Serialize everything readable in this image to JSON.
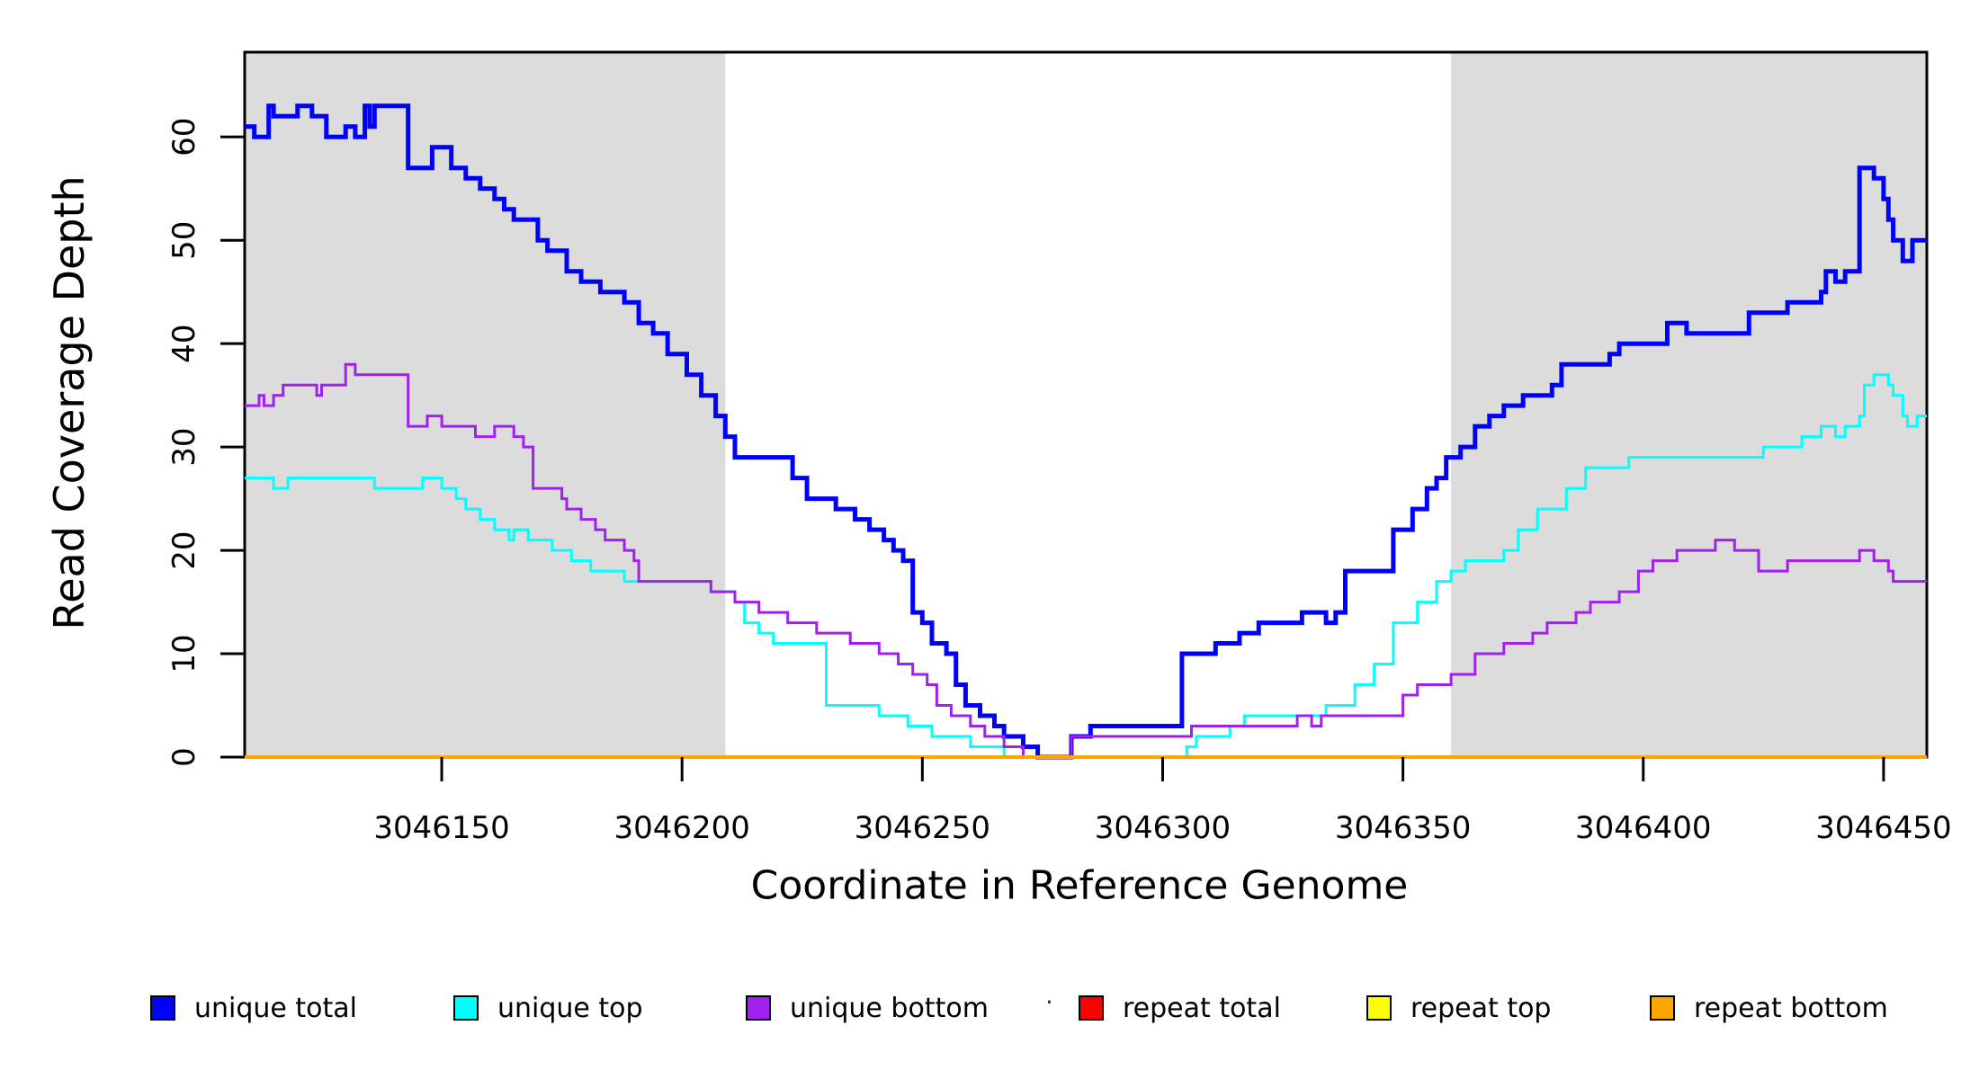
{
  "figure": {
    "xlabel": "Coordinate in Reference Genome",
    "ylabel": "Read Coverage Depth"
  },
  "chart_data": {
    "type": "line",
    "subtype": "step-post",
    "title": "",
    "xlabel": "Coordinate in Reference Genome",
    "ylabel": "Read Coverage Depth",
    "xlim": [
      3046109,
      3046459
    ],
    "ylim": [
      0,
      68.2
    ],
    "x_ticks": [
      3046150,
      3046200,
      3046250,
      3046300,
      3046350,
      3046400,
      3046450
    ],
    "y_ticks": [
      0,
      10,
      20,
      30,
      40,
      50,
      60
    ],
    "grid": false,
    "background": "#ffffff",
    "plot_border_color": "#000000",
    "tick_color": "#000000",
    "legend_position": "bottom",
    "shaded_regions": [
      {
        "x_start": 3046109,
        "x_end": 3046209,
        "color": "#dcdcdc",
        "label": "shaded-region-left"
      },
      {
        "x_start": 3046360,
        "x_end": 3046459,
        "color": "#dcdcdc",
        "label": "shaded-region-right"
      }
    ],
    "series": [
      {
        "name": "unique total",
        "color": "#0000ff",
        "line_width": 5,
        "steps": [
          [
            3046109,
            61
          ],
          [
            3046111,
            60
          ],
          [
            3046114,
            63
          ],
          [
            3046115,
            62
          ],
          [
            3046120,
            63
          ],
          [
            3046123,
            62
          ],
          [
            3046126,
            60
          ],
          [
            3046130,
            61
          ],
          [
            3046132,
            60
          ],
          [
            3046134,
            63
          ],
          [
            3046135,
            61
          ],
          [
            3046136,
            63
          ],
          [
            3046143,
            57
          ],
          [
            3046148,
            59
          ],
          [
            3046152,
            57
          ],
          [
            3046155,
            56
          ],
          [
            3046158,
            55
          ],
          [
            3046161,
            54
          ],
          [
            3046163,
            53
          ],
          [
            3046165,
            52
          ],
          [
            3046170,
            50
          ],
          [
            3046172,
            49
          ],
          [
            3046176,
            47
          ],
          [
            3046179,
            46
          ],
          [
            3046183,
            45
          ],
          [
            3046188,
            44
          ],
          [
            3046191,
            42
          ],
          [
            3046194,
            41
          ],
          [
            3046197,
            39
          ],
          [
            3046201,
            37
          ],
          [
            3046204,
            35
          ],
          [
            3046207,
            33
          ],
          [
            3046209,
            31
          ],
          [
            3046211,
            29
          ],
          [
            3046223,
            27
          ],
          [
            3046226,
            25
          ],
          [
            3046232,
            24
          ],
          [
            3046236,
            23
          ],
          [
            3046239,
            22
          ],
          [
            3046242,
            21
          ],
          [
            3046244,
            20
          ],
          [
            3046246,
            19
          ],
          [
            3046248,
            14
          ],
          [
            3046250,
            13
          ],
          [
            3046252,
            11
          ],
          [
            3046255,
            10
          ],
          [
            3046257,
            7
          ],
          [
            3046259,
            5
          ],
          [
            3046262,
            4
          ],
          [
            3046265,
            3
          ],
          [
            3046267,
            2
          ],
          [
            3046271,
            1
          ],
          [
            3046274,
            0
          ],
          [
            3046281,
            2
          ],
          [
            3046285,
            3
          ],
          [
            3046304,
            10
          ],
          [
            3046311,
            11
          ],
          [
            3046316,
            12
          ],
          [
            3046320,
            13
          ],
          [
            3046329,
            14
          ],
          [
            3046334,
            13
          ],
          [
            3046336,
            14
          ],
          [
            3046338,
            18
          ],
          [
            3046348,
            22
          ],
          [
            3046352,
            24
          ],
          [
            3046355,
            26
          ],
          [
            3046357,
            27
          ],
          [
            3046359,
            29
          ],
          [
            3046362,
            30
          ],
          [
            3046365,
            32
          ],
          [
            3046368,
            33
          ],
          [
            3046371,
            34
          ],
          [
            3046375,
            35
          ],
          [
            3046381,
            36
          ],
          [
            3046383,
            38
          ],
          [
            3046393,
            39
          ],
          [
            3046395,
            40
          ],
          [
            3046405,
            42
          ],
          [
            3046409,
            41
          ],
          [
            3046422,
            43
          ],
          [
            3046430,
            44
          ],
          [
            3046437,
            45
          ],
          [
            3046438,
            47
          ],
          [
            3046440,
            46
          ],
          [
            3046442,
            47
          ],
          [
            3046445,
            57
          ],
          [
            3046448,
            56
          ],
          [
            3046450,
            54
          ],
          [
            3046451,
            52
          ],
          [
            3046452,
            50
          ],
          [
            3046454,
            48
          ],
          [
            3046456,
            50
          ]
        ]
      },
      {
        "name": "unique top",
        "color": "#00ffff",
        "line_width": 3,
        "steps": [
          [
            3046109,
            27
          ],
          [
            3046115,
            26
          ],
          [
            3046118,
            27
          ],
          [
            3046136,
            26
          ],
          [
            3046146,
            27
          ],
          [
            3046150,
            26
          ],
          [
            3046153,
            25
          ],
          [
            3046155,
            24
          ],
          [
            3046158,
            23
          ],
          [
            3046161,
            22
          ],
          [
            3046164,
            21
          ],
          [
            3046165,
            22
          ],
          [
            3046168,
            21
          ],
          [
            3046173,
            20
          ],
          [
            3046177,
            19
          ],
          [
            3046181,
            18
          ],
          [
            3046188,
            17
          ],
          [
            3046206,
            16
          ],
          [
            3046211,
            15
          ],
          [
            3046213,
            13
          ],
          [
            3046216,
            12
          ],
          [
            3046219,
            11
          ],
          [
            3046230,
            5
          ],
          [
            3046241,
            4
          ],
          [
            3046247,
            3
          ],
          [
            3046252,
            2
          ],
          [
            3046260,
            1
          ],
          [
            3046267,
            0
          ],
          [
            3046305,
            1
          ],
          [
            3046307,
            2
          ],
          [
            3046314,
            3
          ],
          [
            3046317,
            4
          ],
          [
            3046334,
            5
          ],
          [
            3046340,
            7
          ],
          [
            3046344,
            9
          ],
          [
            3046348,
            13
          ],
          [
            3046353,
            15
          ],
          [
            3046357,
            17
          ],
          [
            3046360,
            18
          ],
          [
            3046363,
            19
          ],
          [
            3046371,
            20
          ],
          [
            3046374,
            22
          ],
          [
            3046378,
            24
          ],
          [
            3046384,
            26
          ],
          [
            3046388,
            28
          ],
          [
            3046397,
            29
          ],
          [
            3046425,
            30
          ],
          [
            3046433,
            31
          ],
          [
            3046437,
            32
          ],
          [
            3046440,
            31
          ],
          [
            3046442,
            32
          ],
          [
            3046445,
            33
          ],
          [
            3046446,
            36
          ],
          [
            3046448,
            37
          ],
          [
            3046451,
            36
          ],
          [
            3046452,
            35
          ],
          [
            3046454,
            33
          ],
          [
            3046455,
            32
          ],
          [
            3046457,
            33
          ]
        ]
      },
      {
        "name": "unique bottom",
        "color": "#a020f0",
        "line_width": 3,
        "steps": [
          [
            3046109,
            34
          ],
          [
            3046112,
            35
          ],
          [
            3046113,
            34
          ],
          [
            3046115,
            35
          ],
          [
            3046117,
            36
          ],
          [
            3046124,
            35
          ],
          [
            3046125,
            36
          ],
          [
            3046130,
            38
          ],
          [
            3046132,
            37
          ],
          [
            3046143,
            32
          ],
          [
            3046147,
            33
          ],
          [
            3046150,
            32
          ],
          [
            3046157,
            31
          ],
          [
            3046161,
            32
          ],
          [
            3046165,
            31
          ],
          [
            3046167,
            30
          ],
          [
            3046169,
            26
          ],
          [
            3046175,
            25
          ],
          [
            3046176,
            24
          ],
          [
            3046179,
            23
          ],
          [
            3046182,
            22
          ],
          [
            3046184,
            21
          ],
          [
            3046188,
            20
          ],
          [
            3046190,
            19
          ],
          [
            3046191,
            17
          ],
          [
            3046206,
            16
          ],
          [
            3046211,
            15
          ],
          [
            3046216,
            14
          ],
          [
            3046222,
            13
          ],
          [
            3046228,
            12
          ],
          [
            3046235,
            11
          ],
          [
            3046241,
            10
          ],
          [
            3046245,
            9
          ],
          [
            3046248,
            8
          ],
          [
            3046251,
            7
          ],
          [
            3046253,
            5
          ],
          [
            3046256,
            4
          ],
          [
            3046260,
            3
          ],
          [
            3046263,
            2
          ],
          [
            3046267,
            1
          ],
          [
            3046271,
            0
          ],
          [
            3046281,
            2
          ],
          [
            3046306,
            3
          ],
          [
            3046328,
            4
          ],
          [
            3046331,
            3
          ],
          [
            3046333,
            4
          ],
          [
            3046350,
            6
          ],
          [
            3046353,
            7
          ],
          [
            3046360,
            8
          ],
          [
            3046365,
            10
          ],
          [
            3046371,
            11
          ],
          [
            3046377,
            12
          ],
          [
            3046380,
            13
          ],
          [
            3046386,
            14
          ],
          [
            3046389,
            15
          ],
          [
            3046395,
            16
          ],
          [
            3046399,
            18
          ],
          [
            3046402,
            19
          ],
          [
            3046407,
            20
          ],
          [
            3046415,
            21
          ],
          [
            3046419,
            20
          ],
          [
            3046424,
            18
          ],
          [
            3046430,
            19
          ],
          [
            3046445,
            20
          ],
          [
            3046448,
            19
          ],
          [
            3046451,
            18
          ],
          [
            3046452,
            17
          ]
        ]
      },
      {
        "name": "repeat total",
        "color": "#ff0000",
        "line_width": 3,
        "steps": [
          [
            3046109,
            0
          ]
        ]
      },
      {
        "name": "repeat top",
        "color": "#ffff00",
        "line_width": 3,
        "steps": [
          [
            3046109,
            0
          ]
        ]
      },
      {
        "name": "repeat bottom",
        "color": "#ffa500",
        "line_width": 4,
        "steps": [
          [
            3046109,
            0
          ]
        ]
      }
    ]
  },
  "legend": {
    "items": [
      {
        "label": "unique total",
        "color": "#0000ff"
      },
      {
        "label": "unique top",
        "color": "#00ffff"
      },
      {
        "label": "unique bottom",
        "color": "#a020f0"
      },
      {
        "label": "repeat total",
        "color": "#ff0000"
      },
      {
        "label": "repeat top",
        "color": "#ffff00"
      },
      {
        "label": "repeat bottom",
        "color": "#ffa500"
      }
    ],
    "separator_dot": "·"
  }
}
